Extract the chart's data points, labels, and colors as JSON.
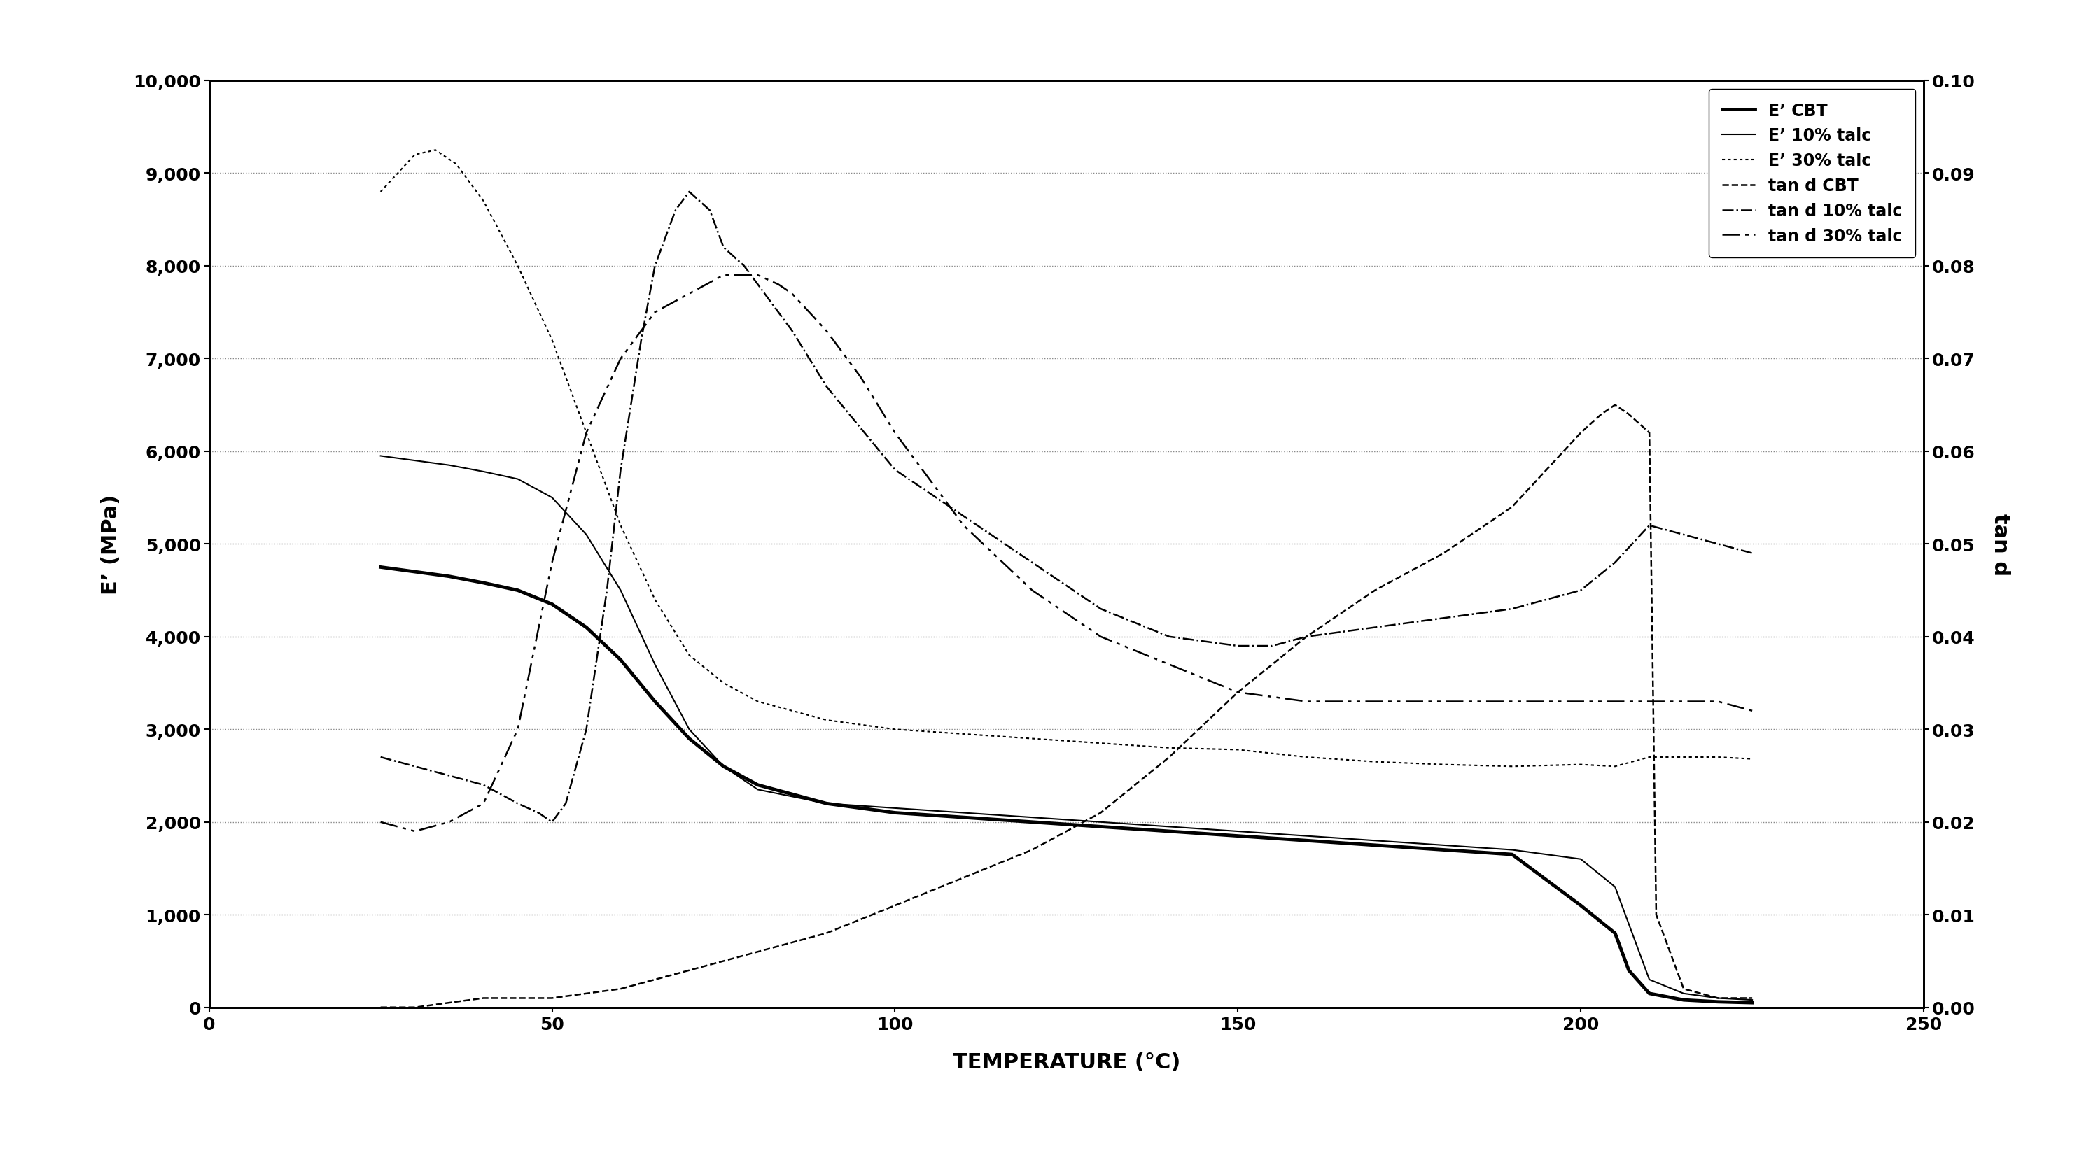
{
  "xlabel": "TEMPERATURE (°C)",
  "ylabel_left": "E’ (MPa)",
  "ylabel_right": "tan d",
  "xlim": [
    0,
    250
  ],
  "ylim_left": [
    0,
    10000
  ],
  "ylim_right": [
    0.0,
    0.1
  ],
  "yticks_left": [
    0,
    1000,
    2000,
    3000,
    4000,
    5000,
    6000,
    7000,
    8000,
    9000,
    10000
  ],
  "yticks_right": [
    0.0,
    0.01,
    0.02,
    0.03,
    0.04,
    0.05,
    0.06,
    0.07,
    0.08,
    0.09,
    0.1
  ],
  "xticks": [
    0,
    50,
    100,
    150,
    200,
    250
  ],
  "E_CBT": {
    "x": [
      25,
      30,
      35,
      40,
      45,
      50,
      55,
      60,
      65,
      70,
      75,
      80,
      90,
      100,
      110,
      120,
      130,
      140,
      150,
      160,
      170,
      180,
      190,
      200,
      205,
      207,
      210,
      215,
      220,
      225
    ],
    "y": [
      4750,
      4700,
      4650,
      4580,
      4500,
      4350,
      4100,
      3750,
      3300,
      2900,
      2600,
      2400,
      2200,
      2100,
      2050,
      2000,
      1950,
      1900,
      1850,
      1800,
      1750,
      1700,
      1650,
      1100,
      800,
      400,
      150,
      80,
      60,
      50
    ],
    "color": "#000000",
    "linewidth": 3.5,
    "linestyle": "solid",
    "label": "E’ CBT"
  },
  "E_10talc": {
    "x": [
      25,
      30,
      35,
      40,
      45,
      50,
      55,
      60,
      65,
      70,
      75,
      80,
      90,
      100,
      110,
      120,
      130,
      140,
      150,
      160,
      170,
      180,
      190,
      200,
      205,
      207,
      210,
      215,
      220,
      225
    ],
    "y": [
      5950,
      5900,
      5850,
      5780,
      5700,
      5500,
      5100,
      4500,
      3700,
      3000,
      2600,
      2350,
      2200,
      2150,
      2100,
      2050,
      2000,
      1950,
      1900,
      1850,
      1800,
      1750,
      1700,
      1600,
      1300,
      900,
      300,
      150,
      100,
      80
    ],
    "color": "#000000",
    "linewidth": 1.5,
    "linestyle": "solid",
    "label": "E’ 10% talc"
  },
  "E_30talc": {
    "x": [
      25,
      30,
      33,
      36,
      40,
      45,
      50,
      55,
      60,
      65,
      70,
      75,
      80,
      90,
      100,
      110,
      120,
      130,
      140,
      150,
      160,
      170,
      180,
      190,
      200,
      205,
      210,
      215,
      220,
      225
    ],
    "y": [
      8800,
      9200,
      9250,
      9100,
      8700,
      8000,
      7200,
      6200,
      5200,
      4400,
      3800,
      3500,
      3300,
      3100,
      3000,
      2950,
      2900,
      2850,
      2800,
      2780,
      2700,
      2650,
      2620,
      2600,
      2620,
      2600,
      2700,
      2700,
      2700,
      2680
    ],
    "color": "#000000",
    "linewidth": 1.5,
    "linestyle": "dotted",
    "label": "E’ 30% talc"
  },
  "tand_CBT": {
    "x": [
      25,
      30,
      40,
      50,
      60,
      70,
      80,
      90,
      100,
      110,
      120,
      130,
      140,
      150,
      160,
      170,
      180,
      190,
      195,
      200,
      203,
      205,
      207,
      210,
      211,
      215,
      220,
      225
    ],
    "y": [
      0.0,
      0.0,
      0.001,
      0.001,
      0.002,
      0.004,
      0.006,
      0.008,
      0.011,
      0.014,
      0.017,
      0.021,
      0.027,
      0.034,
      0.04,
      0.045,
      0.049,
      0.054,
      0.058,
      0.062,
      0.064,
      0.065,
      0.064,
      0.062,
      0.01,
      0.002,
      0.001,
      0.001
    ],
    "color": "#000000",
    "linewidth": 1.8,
    "linestyle": "dashed",
    "label": "tan d CBT"
  },
  "tand_10talc": {
    "x": [
      25,
      30,
      35,
      40,
      45,
      48,
      50,
      52,
      55,
      58,
      60,
      63,
      65,
      68,
      70,
      73,
      75,
      78,
      80,
      85,
      90,
      100,
      110,
      120,
      130,
      140,
      150,
      155,
      160,
      170,
      180,
      190,
      200,
      205,
      210,
      215,
      220,
      225
    ],
    "y": [
      0.027,
      0.026,
      0.025,
      0.024,
      0.022,
      0.021,
      0.02,
      0.022,
      0.03,
      0.045,
      0.058,
      0.072,
      0.08,
      0.086,
      0.088,
      0.086,
      0.082,
      0.08,
      0.078,
      0.073,
      0.067,
      0.058,
      0.053,
      0.048,
      0.043,
      0.04,
      0.039,
      0.039,
      0.04,
      0.041,
      0.042,
      0.043,
      0.045,
      0.048,
      0.052,
      0.051,
      0.05,
      0.049
    ],
    "color": "#000000",
    "linewidth": 1.8,
    "linestyle": "dashdot",
    "label": "tan d 10% talc"
  },
  "tand_30talc": {
    "x": [
      25,
      30,
      35,
      40,
      45,
      50,
      55,
      60,
      65,
      70,
      75,
      78,
      80,
      83,
      85,
      90,
      95,
      100,
      110,
      120,
      130,
      140,
      150,
      160,
      170,
      180,
      190,
      200,
      205,
      210,
      215,
      220,
      225
    ],
    "y": [
      0.02,
      0.019,
      0.02,
      0.022,
      0.03,
      0.048,
      0.062,
      0.07,
      0.075,
      0.077,
      0.079,
      0.079,
      0.079,
      0.078,
      0.077,
      0.073,
      0.068,
      0.062,
      0.052,
      0.045,
      0.04,
      0.037,
      0.034,
      0.033,
      0.033,
      0.033,
      0.033,
      0.033,
      0.033,
      0.033,
      0.033,
      0.033,
      0.032
    ],
    "color": "#000000",
    "linewidth": 1.8,
    "dashes": [
      10,
      3,
      2,
      3,
      2,
      3
    ],
    "label": "tan d 30% talc"
  },
  "legend_labels": [
    "E’ CBT",
    "E’ 10% talc",
    "E’ 30% talc",
    "tan d CBT",
    "tan d 10% talc",
    "tan d 30% talc"
  ],
  "background_color": "#ffffff",
  "grid_color": "#888888"
}
